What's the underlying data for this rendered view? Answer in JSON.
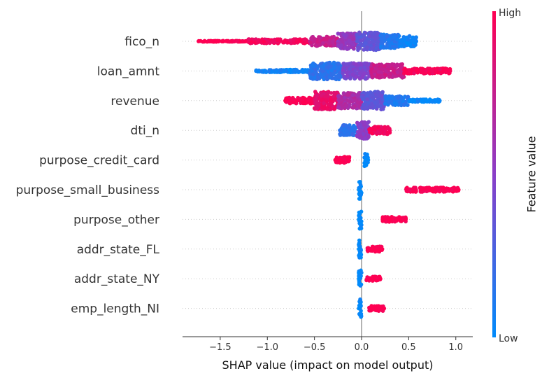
{
  "chart_data": {
    "type": "beeswarm",
    "title": "",
    "xlabel": "SHAP value (impact on model output)",
    "ylabel": "",
    "xlim": [
      -1.9,
      1.18
    ],
    "xticks": [
      -1.5,
      -1.0,
      -0.5,
      0.0,
      0.5,
      1.0
    ],
    "xtick_labels": [
      "−1.5",
      "−1.0",
      "−0.5",
      "0.0",
      "0.5",
      "1.0"
    ],
    "colorbar": {
      "label": "Feature value",
      "high_label": "High",
      "low_label": "Low",
      "low_color": "#008bfb",
      "high_color": "#ff0052",
      "mid_color": "#8a3ec8"
    },
    "features": [
      {
        "name": "fico_n",
        "min": -1.73,
        "max": 0.58,
        "segments": [
          {
            "from": -1.73,
            "to": -1.2,
            "width": 0.05,
            "value": 1.0
          },
          {
            "from": -1.2,
            "to": -0.55,
            "width": 0.2,
            "value": 0.95
          },
          {
            "from": -0.55,
            "to": -0.25,
            "width": 0.45,
            "value": 0.75
          },
          {
            "from": -0.25,
            "to": -0.05,
            "width": 0.75,
            "value": 0.55
          },
          {
            "from": -0.05,
            "to": 0.2,
            "width": 0.85,
            "value": 0.35
          },
          {
            "from": 0.2,
            "to": 0.4,
            "width": 0.65,
            "value": 0.12
          },
          {
            "from": 0.4,
            "to": 0.58,
            "width": 0.5,
            "value": 0.05
          }
        ]
      },
      {
        "name": "loan_amnt",
        "min": -1.12,
        "max": 0.94,
        "segments": [
          {
            "from": -1.12,
            "to": -0.55,
            "width": 0.12,
            "value": 0.05
          },
          {
            "from": -0.55,
            "to": -0.2,
            "width": 0.8,
            "value": 0.15
          },
          {
            "from": -0.2,
            "to": 0.1,
            "width": 0.75,
            "value": 0.45
          },
          {
            "from": 0.1,
            "to": 0.45,
            "width": 0.65,
            "value": 0.75
          },
          {
            "from": 0.45,
            "to": 0.94,
            "width": 0.25,
            "value": 0.97
          }
        ]
      },
      {
        "name": "revenue",
        "min": -0.81,
        "max": 0.83,
        "segments": [
          {
            "from": -0.81,
            "to": -0.5,
            "width": 0.3,
            "value": 1.0
          },
          {
            "from": -0.5,
            "to": -0.25,
            "width": 0.85,
            "value": 0.9
          },
          {
            "from": -0.25,
            "to": 0.0,
            "width": 0.75,
            "value": 0.65
          },
          {
            "from": 0.0,
            "to": 0.25,
            "width": 0.85,
            "value": 0.35
          },
          {
            "from": 0.25,
            "to": 0.5,
            "width": 0.45,
            "value": 0.12
          },
          {
            "from": 0.5,
            "to": 0.83,
            "width": 0.12,
            "value": 0.03
          }
        ]
      },
      {
        "name": "dti_n",
        "min": -0.23,
        "max": 0.3,
        "segments": [
          {
            "from": -0.23,
            "to": -0.05,
            "width": 0.5,
            "value": 0.15
          },
          {
            "from": -0.05,
            "to": 0.08,
            "width": 0.8,
            "value": 0.5
          },
          {
            "from": 0.08,
            "to": 0.3,
            "width": 0.35,
            "value": 0.95
          }
        ]
      },
      {
        "name": "purpose_credit_card",
        "min": -0.28,
        "max": 0.07,
        "segments": [
          {
            "from": -0.28,
            "to": -0.13,
            "width": 0.3,
            "value": 1.0
          },
          {
            "from": 0.03,
            "to": 0.07,
            "width": 0.6,
            "value": 0.0
          }
        ]
      },
      {
        "name": "purpose_small_business",
        "min": -0.03,
        "max": 1.03,
        "segments": [
          {
            "from": -0.03,
            "to": 0.0,
            "width": 0.9,
            "value": 0.0
          },
          {
            "from": 0.47,
            "to": 0.58,
            "width": 0.2,
            "value": 1.0
          },
          {
            "from": 0.62,
            "to": 1.03,
            "width": 0.2,
            "value": 1.0
          }
        ]
      },
      {
        "name": "purpose_other",
        "min": -0.03,
        "max": 0.47,
        "segments": [
          {
            "from": -0.03,
            "to": 0.0,
            "width": 0.9,
            "value": 0.0
          },
          {
            "from": 0.22,
            "to": 0.47,
            "width": 0.25,
            "value": 1.0
          }
        ]
      },
      {
        "name": "addr_state_FL",
        "min": -0.03,
        "max": 0.22,
        "segments": [
          {
            "from": -0.03,
            "to": 0.0,
            "width": 0.9,
            "value": 0.0
          },
          {
            "from": 0.06,
            "to": 0.22,
            "width": 0.25,
            "value": 1.0
          }
        ]
      },
      {
        "name": "addr_state_NY",
        "min": -0.03,
        "max": 0.2,
        "segments": [
          {
            "from": -0.03,
            "to": 0.0,
            "width": 0.9,
            "value": 0.0
          },
          {
            "from": 0.05,
            "to": 0.2,
            "width": 0.2,
            "value": 1.0
          }
        ]
      },
      {
        "name": "emp_length_NI",
        "min": -0.03,
        "max": 0.24,
        "segments": [
          {
            "from": -0.03,
            "to": 0.0,
            "width": 0.9,
            "value": 0.0
          },
          {
            "from": 0.08,
            "to": 0.24,
            "width": 0.25,
            "value": 1.0
          }
        ]
      }
    ]
  }
}
